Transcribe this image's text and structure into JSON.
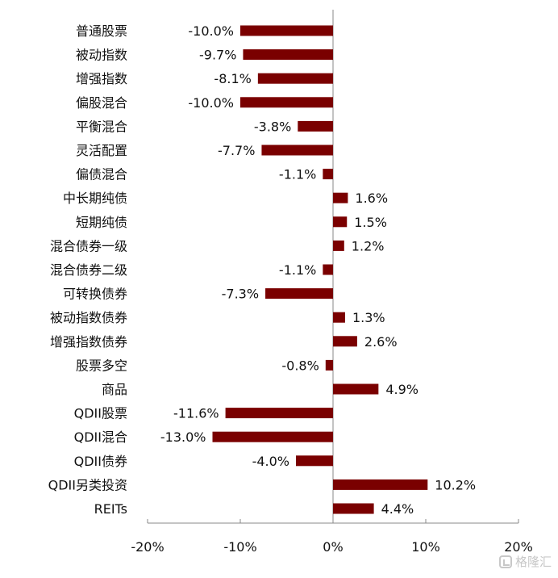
{
  "chart_data": {
    "type": "bar",
    "orientation": "horizontal",
    "categories": [
      "普通股票",
      "被动指数",
      "增强指数",
      "偏股混合",
      "平衡混合",
      "灵活配置",
      "偏债混合",
      "中长期纯债",
      "短期纯债",
      "混合债券一级",
      "混合债券二级",
      "可转换债券",
      "被动指数债券",
      "增强指数债券",
      "股票多空",
      "商品",
      "QDII股票",
      "QDII混合",
      "QDII债券",
      "QDII另类投资",
      "REITs"
    ],
    "values": [
      -10.0,
      -9.7,
      -8.1,
      -10.0,
      -3.8,
      -7.7,
      -1.1,
      1.6,
      1.5,
      1.2,
      -1.1,
      -7.3,
      1.3,
      2.6,
      -0.8,
      4.9,
      -11.6,
      -13.0,
      -4.0,
      10.2,
      4.4
    ],
    "data_labels": [
      "-10.0%",
      "-9.7%",
      "-8.1%",
      "-10.0%",
      "-3.8%",
      "-7.7%",
      "-1.1%",
      "1.6%",
      "1.5%",
      "1.2%",
      "-1.1%",
      "-7.3%",
      "1.3%",
      "2.6%",
      "-0.8%",
      "4.9%",
      "-11.6%",
      "-13.0%",
      "-4.0%",
      "10.2%",
      "4.4%"
    ],
    "xlim": [
      -20,
      20
    ],
    "xticks": [
      -20,
      -10,
      0,
      10,
      20
    ],
    "xtick_labels": [
      "-20%",
      "-10%",
      "0%",
      "10%",
      "20%"
    ],
    "title": "",
    "xlabel": "",
    "ylabel": "",
    "grid": false,
    "legend": "none",
    "bar_color": "#7a0000"
  },
  "watermark": {
    "text": "格隆汇",
    "icon": "gelonghui-logo-icon"
  }
}
